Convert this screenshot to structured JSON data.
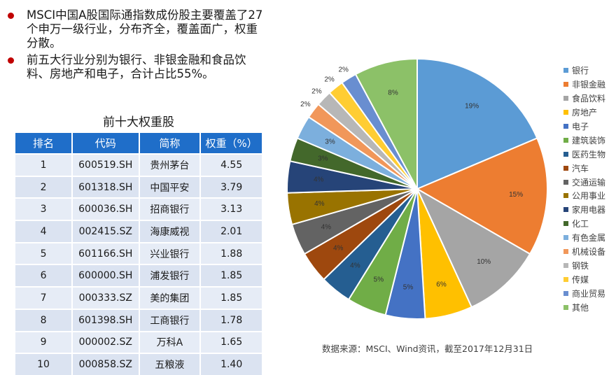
{
  "bullets": [
    "MSCI中国A股国际通指数成份股主要覆盖了27个申万一级行业，分布齐全，覆盖面广，权重分散。",
    "前五大行业分别为银行、非银金融和食品饮料、房地产和电子，合计占比55%。"
  ],
  "table": {
    "title": "前十大权重股",
    "headers": [
      "排名",
      "代码",
      "简称",
      "权重（%）"
    ],
    "rows": [
      [
        "1",
        "600519.SH",
        "贵州茅台",
        "4.55"
      ],
      [
        "2",
        "601318.SH",
        "中国平安",
        "3.79"
      ],
      [
        "3",
        "600036.SH",
        "招商银行",
        "3.13"
      ],
      [
        "4",
        "002415.SZ",
        "海康威视",
        "2.01"
      ],
      [
        "5",
        "601166.SH",
        "兴业银行",
        "1.88"
      ],
      [
        "6",
        "600000.SH",
        "浦发银行",
        "1.85"
      ],
      [
        "7",
        "000333.SZ",
        "美的集团",
        "1.85"
      ],
      [
        "8",
        "601398.SH",
        "工商银行",
        "1.78"
      ],
      [
        "9",
        "000002.SZ",
        "万科A",
        "1.65"
      ],
      [
        "10",
        "000858.SZ",
        "五粮液",
        "1.40"
      ]
    ]
  },
  "chart_data": {
    "type": "pie",
    "start": "top",
    "direction": "clockwise",
    "legend_position": "right",
    "slices": [
      {
        "name": "银行",
        "value": 19,
        "label": "19%",
        "color": "#5b9bd5"
      },
      {
        "name": "非银金融",
        "value": 15,
        "label": "15%",
        "color": "#ed7d31"
      },
      {
        "name": "食品饮料",
        "value": 10,
        "label": "10%",
        "color": "#a5a5a5"
      },
      {
        "name": "房地产",
        "value": 6,
        "label": "6%",
        "color": "#ffc000"
      },
      {
        "name": "电子",
        "value": 5,
        "label": "5%",
        "color": "#4472c4"
      },
      {
        "name": "建筑装饰",
        "value": 5,
        "label": "5%",
        "color": "#70ad47"
      },
      {
        "name": "医药生物",
        "value": 4,
        "label": "4%",
        "color": "#255e91"
      },
      {
        "name": "汽车",
        "value": 4,
        "label": "4%",
        "color": "#9e480e"
      },
      {
        "name": "交通运输",
        "value": 4,
        "label": "4%",
        "color": "#636363"
      },
      {
        "name": "公用事业",
        "value": 4,
        "label": "4%",
        "color": "#997300"
      },
      {
        "name": "家用电器",
        "value": 4,
        "label": "4%",
        "color": "#264478"
      },
      {
        "name": "化工",
        "value": 3,
        "label": "3%",
        "color": "#43682b"
      },
      {
        "name": "有色金属",
        "value": 3,
        "label": "3%",
        "color": "#7cafdd"
      },
      {
        "name": "机械设备",
        "value": 2,
        "label": "2%",
        "color": "#f1975a"
      },
      {
        "name": "钢铁",
        "value": 2,
        "label": "2%",
        "color": "#b7b7b7"
      },
      {
        "name": "传媒",
        "value": 2,
        "label": "2%",
        "color": "#ffcd33"
      },
      {
        "name": "商业贸易",
        "value": 2,
        "label": "2%",
        "color": "#698ed0"
      },
      {
        "name": "其他",
        "value": 8,
        "label": "8%",
        "color": "#8cc168"
      }
    ]
  },
  "source": "数据来源：MSCI、Wind资讯，截至2017年12月31日"
}
